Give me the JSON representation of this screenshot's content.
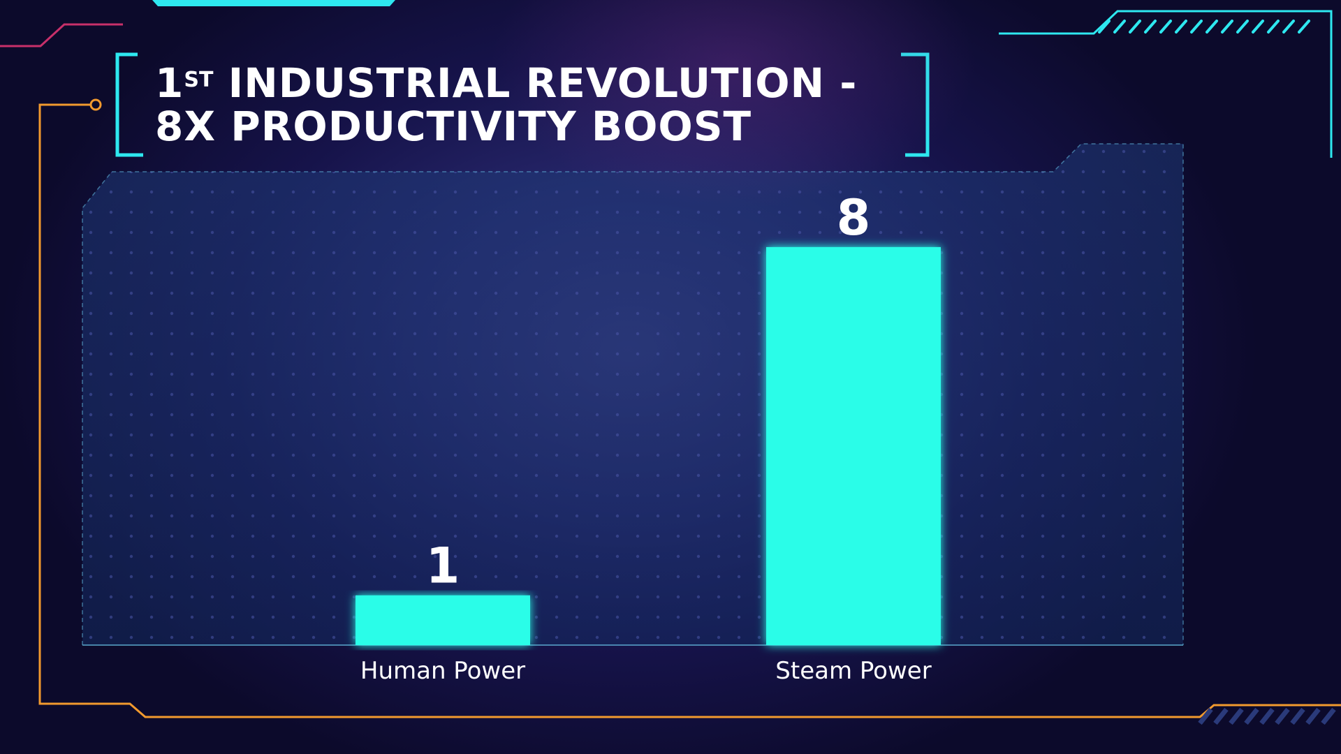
{
  "colors": {
    "bar": "#29fde8",
    "accent_cyan": "#2ee8f0",
    "accent_orange": "#f29a2e",
    "accent_magenta": "#c8306a"
  },
  "title": {
    "ordinal_number": "1",
    "ordinal_suffix": "ST",
    "line1_rest": " INDUSTRIAL REVOLUTION -",
    "line2": "8X PRODUCTIVITY BOOST"
  },
  "chart_data": {
    "type": "bar",
    "title": "1ST INDUSTRIAL REVOLUTION - 8X PRODUCTIVITY BOOST",
    "categories": [
      "Human Power",
      "Steam Power"
    ],
    "values": [
      1,
      8
    ],
    "data_labels": [
      "1",
      "8"
    ],
    "xlabel": "",
    "ylabel": "",
    "ylim": [
      0,
      8.7
    ],
    "grid": false,
    "legend": "none"
  }
}
